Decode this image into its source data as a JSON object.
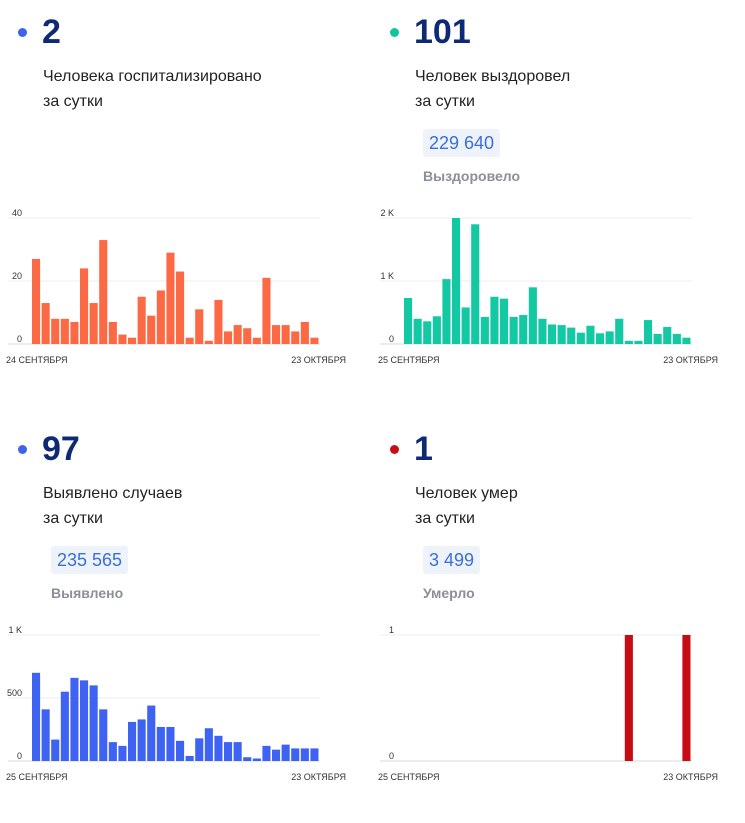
{
  "cards": [
    {
      "value": "2",
      "label_line1": "Человека госпитализировано",
      "label_line2": "за сутки",
      "total": "",
      "total_label": "",
      "dot_color": "#3d63e8"
    },
    {
      "value": "101",
      "label_line1": "Человек выздоровел",
      "label_line2": "за сутки",
      "total": "229 640",
      "total_label": "Выздоровело",
      "dot_color": "#12c3a0"
    },
    {
      "value": "97",
      "label_line1": "Выявлено случаев",
      "label_line2": "за сутки",
      "total": "235 565",
      "total_label": "Выявлено",
      "dot_color": "#3d63e8"
    },
    {
      "value": "1",
      "label_line1": "Человек умер",
      "label_line2": "за сутки",
      "total": "3 499",
      "total_label": "Умерло",
      "dot_color": "#c80c14"
    }
  ],
  "chart_data": [
    {
      "type": "bar",
      "color": "#fb6a45",
      "ylim": [
        0,
        40
      ],
      "yticks": [
        0,
        20,
        40
      ],
      "ytick_labels": [
        "0",
        "20",
        "40"
      ],
      "x_start_label": "24 СЕНТЯБРЯ",
      "x_end_label": "23 ОКТЯБРЯ",
      "grid": true,
      "values": [
        27,
        13,
        8,
        8,
        7,
        24,
        13,
        33,
        7,
        3,
        2,
        15,
        9,
        17,
        29,
        23,
        2,
        11,
        1,
        14,
        4,
        6,
        5,
        2,
        21,
        6,
        6,
        4,
        7,
        2
      ]
    },
    {
      "type": "bar",
      "color": "#12c9a4",
      "ylim": [
        0,
        2000
      ],
      "yticks": [
        0,
        1000,
        2000
      ],
      "ytick_labels": [
        "0",
        "1 K",
        "2 K"
      ],
      "x_start_label": "25 СЕНТЯБРЯ",
      "x_end_label": "23 ОКТЯБРЯ",
      "grid": true,
      "values": [
        730,
        400,
        360,
        440,
        1030,
        2000,
        580,
        1900,
        430,
        750,
        720,
        430,
        460,
        900,
        400,
        310,
        300,
        260,
        180,
        290,
        170,
        200,
        400,
        50,
        50,
        380,
        160,
        270,
        160,
        100
      ]
    },
    {
      "type": "bar",
      "color": "#3e63f2",
      "ylim": [
        0,
        1000
      ],
      "yticks": [
        0,
        500,
        1000
      ],
      "ytick_labels": [
        "0",
        "500",
        "1 K"
      ],
      "x_start_label": "25 СЕНТЯБРЯ",
      "x_end_label": "23 ОКТЯБРЯ",
      "grid": true,
      "values": [
        700,
        410,
        170,
        550,
        660,
        640,
        600,
        410,
        150,
        120,
        310,
        330,
        440,
        270,
        270,
        160,
        40,
        180,
        260,
        200,
        150,
        150,
        30,
        20,
        120,
        90,
        130,
        100,
        100,
        100
      ]
    },
    {
      "type": "bar",
      "color": "#c80c14",
      "ylim": [
        0,
        1
      ],
      "yticks": [
        0,
        1
      ],
      "ytick_labels": [
        "0",
        "1"
      ],
      "x_start_label": "25 СЕНТЯБРЯ",
      "x_end_label": "23 ОКТЯБРЯ",
      "grid": true,
      "values": [
        0,
        0,
        0,
        0,
        0,
        0,
        0,
        0,
        0,
        0,
        0,
        0,
        0,
        0,
        0,
        0,
        0,
        0,
        0,
        0,
        0,
        0,
        0,
        1,
        0,
        0,
        0,
        0,
        0,
        1
      ]
    }
  ]
}
